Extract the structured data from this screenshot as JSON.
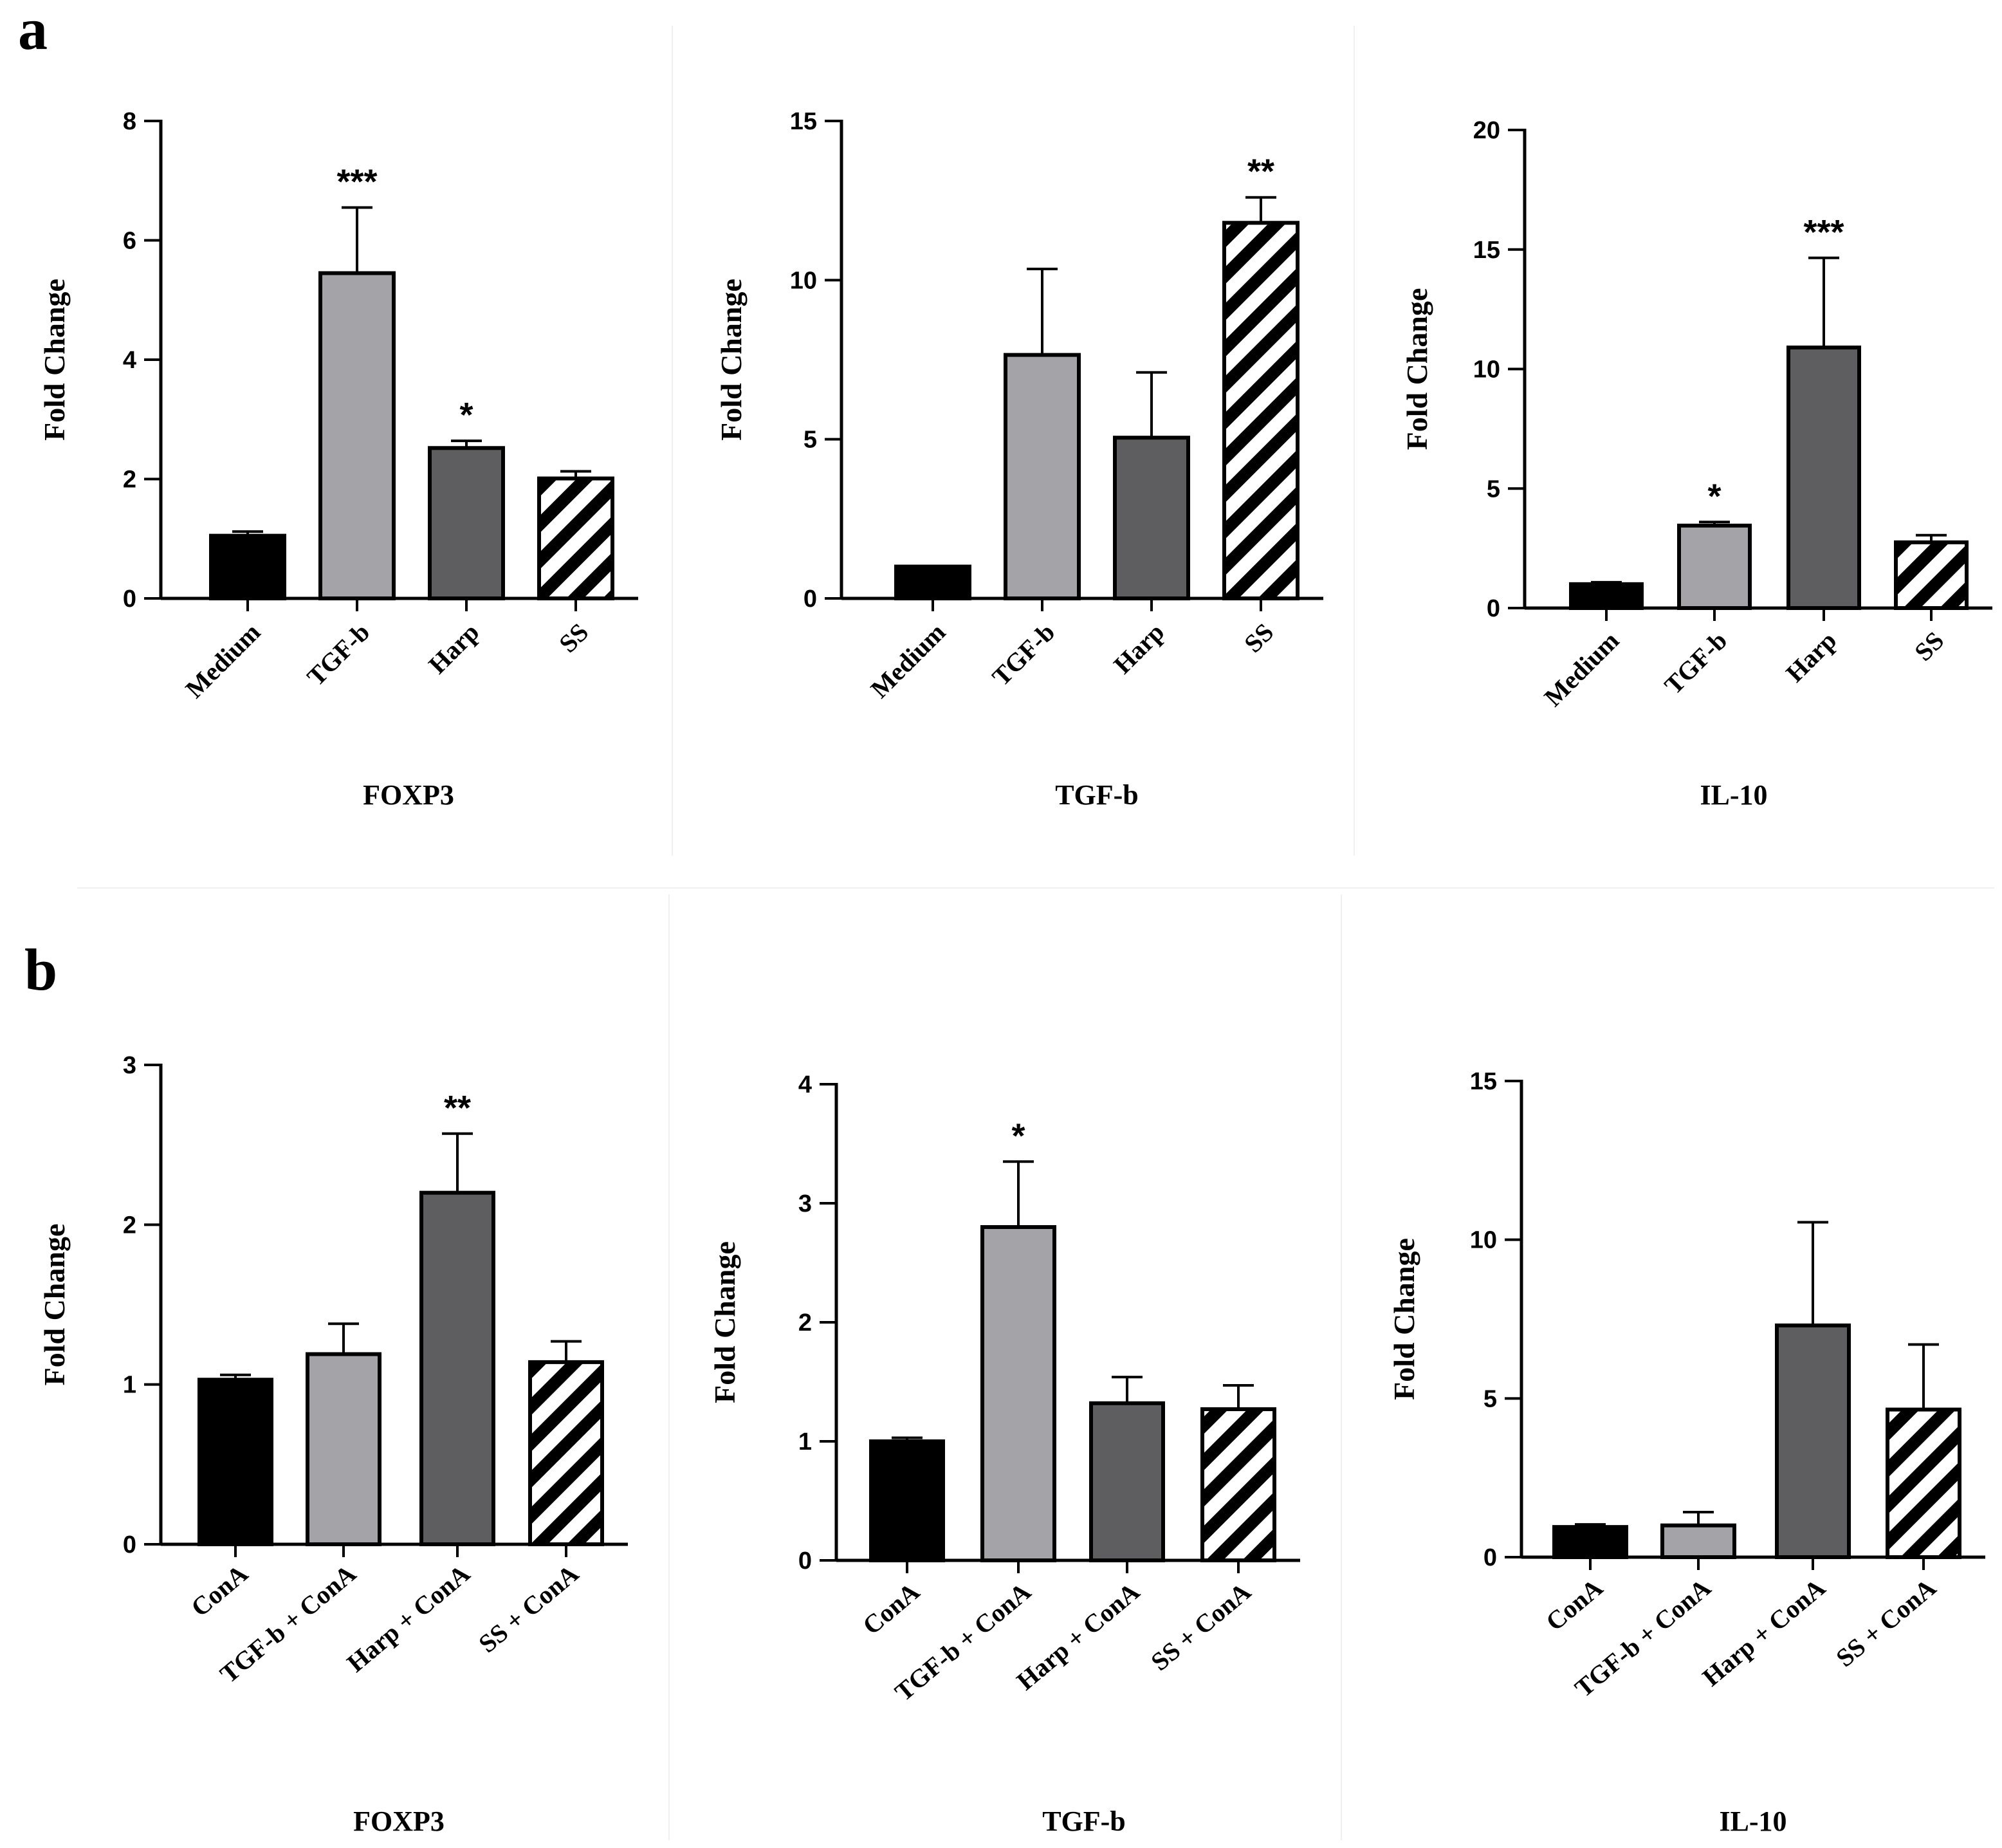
{
  "panels": [
    "a",
    "b"
  ],
  "colors": {
    "black": "#000000",
    "light_gray": "#a3a3a8",
    "dark_gray": "#5e5e60",
    "hatch_bg": "#ffffff"
  },
  "chart_data": [
    {
      "type": "bar",
      "panel": "a",
      "title": "FOXP3",
      "ylabel": "Fold Change",
      "categories": [
        "Medium",
        "TGF-b",
        "Harp",
        "SS"
      ],
      "values": [
        1.05,
        5.45,
        2.52,
        2.01
      ],
      "errors": [
        0.07,
        1.1,
        0.12,
        0.12
      ],
      "significance": [
        "",
        "***",
        "*",
        ""
      ],
      "ylim": [
        0,
        8
      ],
      "yticks": [
        0,
        2,
        4,
        6,
        8
      ]
    },
    {
      "type": "bar",
      "panel": "a",
      "title": "TGF-b",
      "ylabel": "Fold Change",
      "categories": [
        "Medium",
        "TGF-b",
        "Harp",
        "SS"
      ],
      "values": [
        1.0,
        7.65,
        5.05,
        11.8
      ],
      "errors": [
        0.0,
        2.7,
        2.05,
        0.8
      ],
      "significance": [
        "",
        "",
        "",
        "**"
      ],
      "ylim": [
        0,
        15
      ],
      "yticks": [
        0,
        5,
        10,
        15
      ]
    },
    {
      "type": "bar",
      "panel": "a",
      "title": "IL-10",
      "ylabel": "Fold Change",
      "categories": [
        "Medium",
        "TGF-b",
        "Harp",
        "SS"
      ],
      "values": [
        1.0,
        3.45,
        10.9,
        2.75
      ],
      "errors": [
        0.08,
        0.15,
        3.75,
        0.3
      ],
      "significance": [
        "",
        "*",
        "***",
        ""
      ],
      "ylim": [
        0,
        20
      ],
      "yticks": [
        0,
        5,
        10,
        15,
        20
      ]
    },
    {
      "type": "bar",
      "panel": "b",
      "title": "FOXP3",
      "ylabel": "Fold Change",
      "categories": [
        "ConA",
        "TGF-b + ConA",
        "Harp + ConA",
        "SS + ConA"
      ],
      "values": [
        1.03,
        1.19,
        2.2,
        1.14
      ],
      "errors": [
        0.03,
        0.19,
        0.37,
        0.13
      ],
      "significance": [
        "",
        "",
        "**",
        ""
      ],
      "ylim": [
        0,
        3
      ],
      "yticks": [
        0,
        1,
        2,
        3
      ]
    },
    {
      "type": "bar",
      "panel": "b",
      "title": "TGF-b",
      "ylabel": "Fold Change",
      "categories": [
        "ConA",
        "TGF-b + ConA",
        "Harp + ConA",
        "SS + ConA"
      ],
      "values": [
        1.0,
        2.8,
        1.32,
        1.27
      ],
      "errors": [
        0.03,
        0.55,
        0.22,
        0.2
      ],
      "significance": [
        "",
        "*",
        "",
        ""
      ],
      "ylim": [
        0,
        4
      ],
      "yticks": [
        0,
        1,
        2,
        3,
        4
      ]
    },
    {
      "type": "bar",
      "panel": "b",
      "title": "IL-10",
      "ylabel": "Fold Change",
      "categories": [
        "ConA",
        "TGF-b + ConA",
        "Harp + ConA",
        "SS + ConA"
      ],
      "values": [
        0.95,
        1.0,
        7.3,
        4.65
      ],
      "errors": [
        0.08,
        0.42,
        3.25,
        2.05
      ],
      "significance": [
        "",
        "",
        "",
        ""
      ],
      "ylim": [
        0,
        15
      ],
      "yticks": [
        0,
        5,
        10,
        15
      ]
    }
  ]
}
